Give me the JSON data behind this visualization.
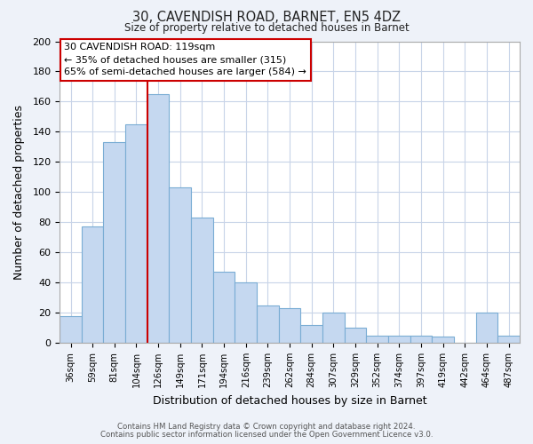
{
  "title1": "30, CAVENDISH ROAD, BARNET, EN5 4DZ",
  "title2": "Size of property relative to detached houses in Barnet",
  "xlabel": "Distribution of detached houses by size in Barnet",
  "ylabel": "Number of detached properties",
  "categories": [
    "36sqm",
    "59sqm",
    "81sqm",
    "104sqm",
    "126sqm",
    "149sqm",
    "171sqm",
    "194sqm",
    "216sqm",
    "239sqm",
    "262sqm",
    "284sqm",
    "307sqm",
    "329sqm",
    "352sqm",
    "374sqm",
    "397sqm",
    "419sqm",
    "442sqm",
    "464sqm",
    "487sqm"
  ],
  "values": [
    18,
    77,
    133,
    145,
    165,
    103,
    83,
    47,
    40,
    25,
    23,
    12,
    20,
    10,
    5,
    5,
    5,
    4,
    0,
    20,
    5
  ],
  "bar_color": "#c5d8f0",
  "bar_edge_color": "#7aadd4",
  "vline_color": "#cc0000",
  "annotation_title": "30 CAVENDISH ROAD: 119sqm",
  "annotation_line1": "← 35% of detached houses are smaller (315)",
  "annotation_line2": "65% of semi-detached houses are larger (584) →",
  "annotation_box_color": "#ffffff",
  "annotation_box_edge_color": "#cc0000",
  "ylim": [
    0,
    200
  ],
  "yticks": [
    0,
    20,
    40,
    60,
    80,
    100,
    120,
    140,
    160,
    180,
    200
  ],
  "footer1": "Contains HM Land Registry data © Crown copyright and database right 2024.",
  "footer2": "Contains public sector information licensed under the Open Government Licence v3.0.",
  "bg_color": "#eef2f9",
  "plot_bg_color": "#ffffff",
  "grid_color": "#c8d4e8"
}
